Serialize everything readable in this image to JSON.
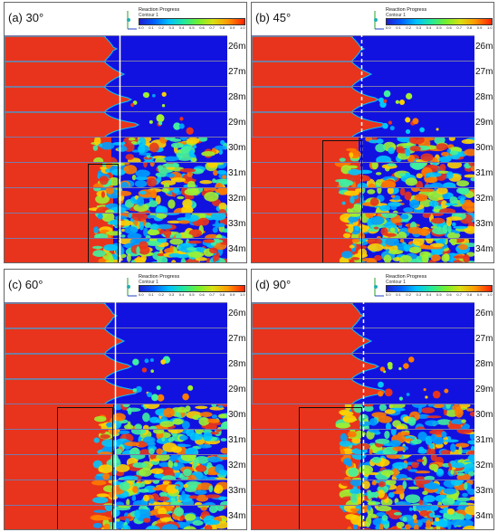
{
  "colors": {
    "burnt": "#e8341c",
    "unburnt": "#1212e0",
    "flame_front_mid": "#00c8ff",
    "flame_front_hot": "#ffd000"
  },
  "legend": {
    "title": "Reaction Progress",
    "subtitle": "Contour 1",
    "ticks": [
      "0.0",
      "0.1",
      "0.2",
      "0.3",
      "0.4",
      "0.5",
      "0.6",
      "0.7",
      "0.8",
      "0.9",
      "1.0"
    ]
  },
  "panels": [
    {
      "id": "a",
      "label": "(a) 30°",
      "times": [
        "26ms",
        "27ms",
        "28ms",
        "29ms",
        "30ms",
        "31ms",
        "32ms",
        "33ms",
        "34ms"
      ]
    },
    {
      "id": "b",
      "label": "(b) 45°",
      "times": [
        "26ms",
        "27ms",
        "28ms",
        "29ms",
        "30ms",
        "31ms",
        "32ms",
        "33ms",
        "34ms"
      ]
    },
    {
      "id": "c",
      "label": "(c) 60°",
      "times": [
        "26ms",
        "27ms",
        "28ms",
        "29ms",
        "30ms",
        "31ms",
        "32ms",
        "33ms",
        "34ms"
      ]
    },
    {
      "id": "d",
      "label": "(d) 90°",
      "times": [
        "26ms",
        "27ms",
        "28ms",
        "29ms",
        "30ms",
        "31ms",
        "32ms",
        "33ms",
        "34ms"
      ]
    }
  ]
}
